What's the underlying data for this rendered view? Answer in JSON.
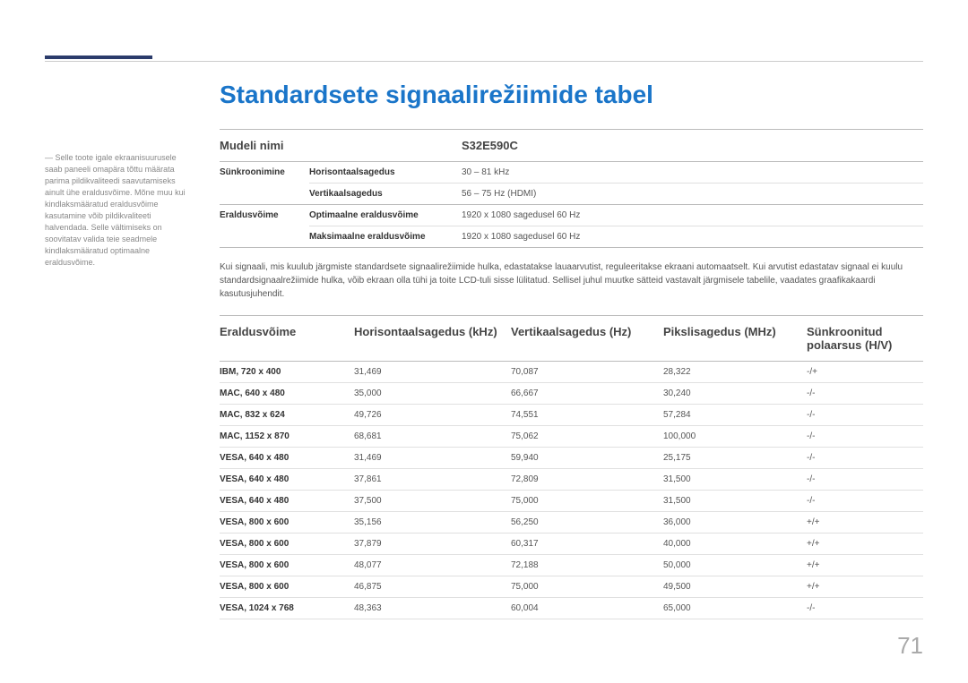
{
  "page_number": "71",
  "title": "Standardsete signaalirežiimide tabel",
  "sidebar_note": "Selle toote igale ekraanisuurusele saab paneeli omapära tõttu määrata parima pildikvaliteedi saavutamiseks ainult ühe eraldusvõime. Mõne muu kui kindlaksmääratud eraldusvõime kasutamine võib pildikvaliteeti halvendada. Selle vältimiseks on soovitatav valida teie seadmele kindlaksmääratud optimaalne eraldusvõime.",
  "spec": {
    "header_model_label": "Mudeli nimi",
    "header_model_value": "S32E590C",
    "groups": [
      {
        "label": "Sünkroonimine",
        "rows": [
          {
            "k": "Horisontaalsagedus",
            "v": "30 – 81 kHz"
          },
          {
            "k": "Vertikaalsagedus",
            "v": "56 – 75 Hz (HDMI)"
          }
        ]
      },
      {
        "label": "Eraldusvõime",
        "rows": [
          {
            "k": "Optimaalne eraldusvõime",
            "v": "1920 x 1080 sagedusel 60 Hz"
          },
          {
            "k": "Maksimaalne eraldusvõime",
            "v": "1920 x 1080 sagedusel 60 Hz"
          }
        ]
      }
    ]
  },
  "body_text": "Kui signaali, mis kuulub järgmiste standardsete signaalirežiimide hulka, edastatakse lauaarvutist, reguleeritakse ekraani automaatselt. Kui arvutist edastatav signaal ei kuulu standardsignaalrežiimide hulka, võib ekraan olla tühi ja toite LCD-tuli sisse lülitatud. Sellisel juhul muutke sätteid vastavalt järgmisele tabelile, vaadates graafikakaardi kasutusjuhendit.",
  "data_table": {
    "columns": [
      "Eraldusvõime",
      "Horisontaalsagedus (kHz)",
      "Vertikaalsagedus (Hz)",
      "Pikslisagedus (MHz)",
      "Sünkroonitud polaarsus (H/V)"
    ],
    "rows": [
      [
        "IBM, 720 x 400",
        "31,469",
        "70,087",
        "28,322",
        "-/+"
      ],
      [
        "MAC, 640 x 480",
        "35,000",
        "66,667",
        "30,240",
        "-/-"
      ],
      [
        "MAC, 832 x 624",
        "49,726",
        "74,551",
        "57,284",
        "-/-"
      ],
      [
        "MAC, 1152 x 870",
        "68,681",
        "75,062",
        "100,000",
        "-/-"
      ],
      [
        "VESA, 640 x 480",
        "31,469",
        "59,940",
        "25,175",
        "-/-"
      ],
      [
        "VESA, 640 x 480",
        "37,861",
        "72,809",
        "31,500",
        "-/-"
      ],
      [
        "VESA, 640 x 480",
        "37,500",
        "75,000",
        "31,500",
        "-/-"
      ],
      [
        "VESA, 800 x 600",
        "35,156",
        "56,250",
        "36,000",
        "+/+"
      ],
      [
        "VESA, 800 x 600",
        "37,879",
        "60,317",
        "40,000",
        "+/+"
      ],
      [
        "VESA, 800 x 600",
        "48,077",
        "72,188",
        "50,000",
        "+/+"
      ],
      [
        "VESA, 800 x 600",
        "46,875",
        "75,000",
        "49,500",
        "+/+"
      ],
      [
        "VESA, 1024 x 768",
        "48,363",
        "60,004",
        "65,000",
        "-/-"
      ]
    ]
  },
  "colors": {
    "title": "#1a75c9",
    "accent": "#2b3b6b",
    "rule": "#bbbbbb",
    "row_rule": "#e0e0e0",
    "text": "#333333",
    "muted": "#888888",
    "pagenum": "#aaaaaa"
  }
}
